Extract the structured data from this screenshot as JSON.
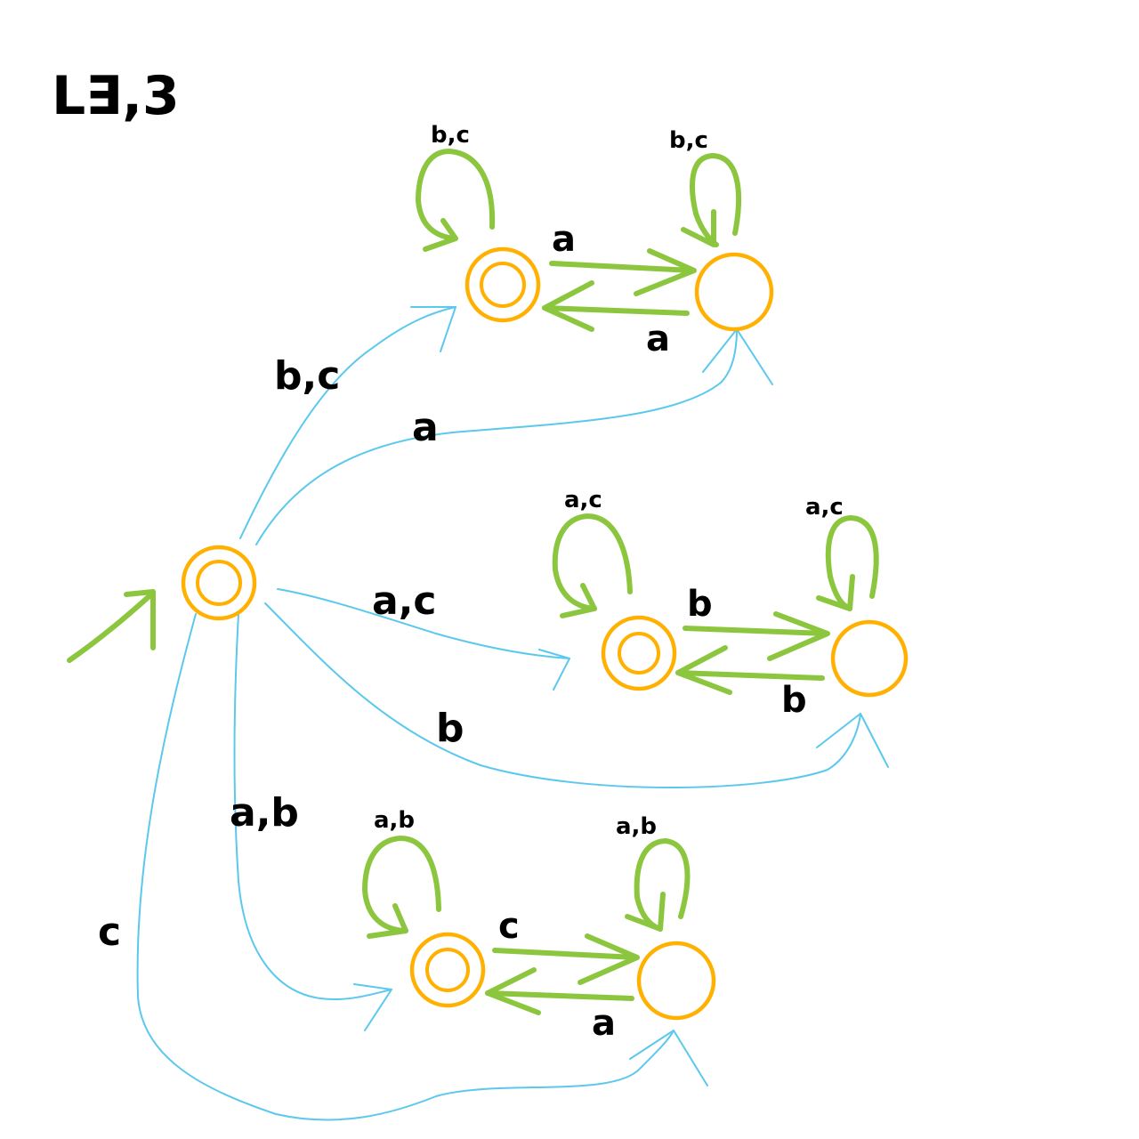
{
  "title": "L∃,3",
  "colors": {
    "state": "#ffb000",
    "green_edge": "#8cc63f",
    "blue_edge": "#5bc8ee",
    "text": "#000000"
  },
  "states": [
    {
      "id": "start",
      "accepting": true,
      "initial": true
    },
    {
      "id": "top_left",
      "accepting": true
    },
    {
      "id": "top_right",
      "accepting": false
    },
    {
      "id": "mid_left",
      "accepting": true
    },
    {
      "id": "mid_right",
      "accepting": false
    },
    {
      "id": "bottom_left",
      "accepting": true
    },
    {
      "id": "bottom_right",
      "accepting": false
    }
  ],
  "edge_labels": {
    "start_to_top_left": "b,c",
    "start_to_top_right": "a",
    "start_to_mid_left": "a,c",
    "start_to_mid_right": "b",
    "start_to_bottom_left": "a,b",
    "start_to_bottom_right": "c",
    "top_left_loop": "b,c",
    "top_right_loop": "b,c",
    "top_left_to_right": "a",
    "top_right_to_left": "a",
    "mid_left_loop": "a,c",
    "mid_right_loop": "a,c",
    "mid_left_to_right": "b",
    "mid_right_to_left": "b",
    "bottom_left_loop": "a,b",
    "bottom_right_loop": "a,b",
    "bottom_left_to_right": "c",
    "bottom_right_to_left": "a"
  }
}
